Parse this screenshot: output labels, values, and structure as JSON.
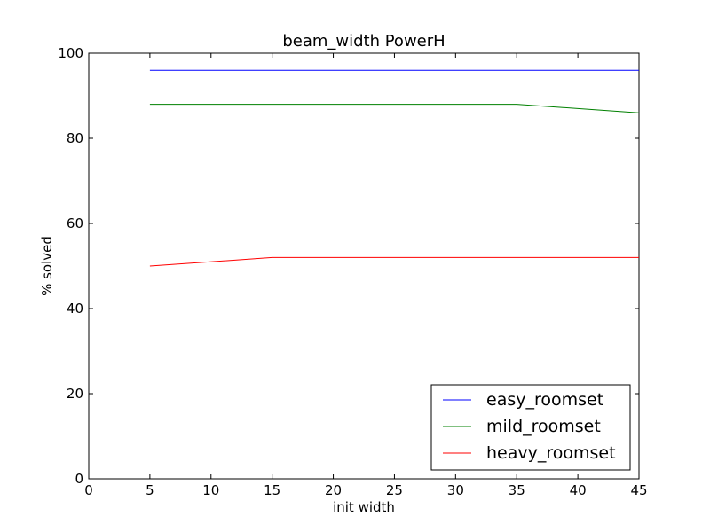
{
  "chart_data": {
    "type": "line",
    "title": "beam_width PowerH",
    "xlabel": "init width",
    "ylabel": "% solved",
    "xlim": [
      0,
      45
    ],
    "ylim": [
      0,
      100
    ],
    "x": [
      5,
      15,
      25,
      35,
      45
    ],
    "x_ticks": [
      "0",
      "5",
      "10",
      "15",
      "20",
      "25",
      "30",
      "35",
      "40",
      "45"
    ],
    "y_ticks": [
      "0",
      "20",
      "40",
      "60",
      "80",
      "100"
    ],
    "grid": false,
    "legend_position": "lower-right",
    "series": [
      {
        "name": "easy_roomset",
        "color": "#0000ff",
        "values": [
          96,
          96,
          96,
          96,
          96
        ]
      },
      {
        "name": "mild_roomset",
        "color": "#008000",
        "values": [
          88,
          88,
          88,
          88,
          86
        ]
      },
      {
        "name": "heavy_roomset",
        "color": "#ff0000",
        "values": [
          50,
          52,
          52,
          52,
          52
        ]
      }
    ]
  }
}
